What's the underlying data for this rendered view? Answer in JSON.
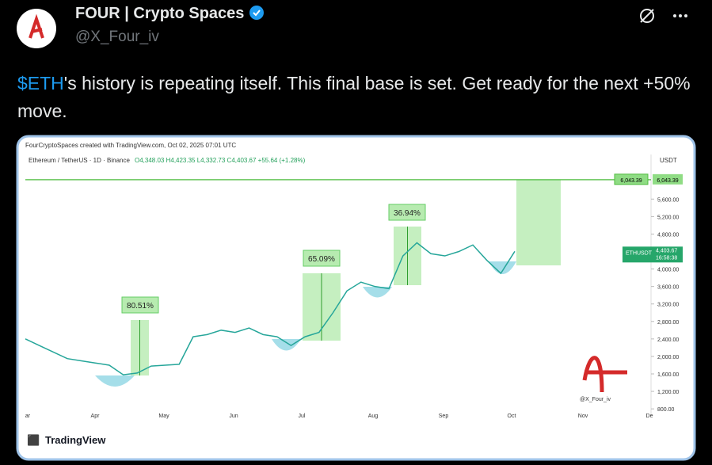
{
  "post": {
    "author": "FOUR | Crypto Spaces",
    "handle": "@X_Four_iv",
    "cashtag": "$ETH",
    "text": "'s history is repeating itself. This final base is set. Get ready for the next +50% move."
  },
  "chart": {
    "header": "FourCryptoSpaces created with TradingView.com, Oct 02, 2025 07:01 UTC",
    "symbol": "Ethereum / TetherUS · 1D · Binance",
    "ohlc": "O4,348.03 H4,423.35 L4,332.73 C4,403.67 +55.64 (+1.28%)",
    "currency": "USDT",
    "ylim": [
      730,
      6530
    ],
    "yticks": [
      {
        "value": 800,
        "label": "800.00"
      },
      {
        "value": 1200,
        "label": "1,200.00"
      },
      {
        "value": 1600,
        "label": "1,600.00"
      },
      {
        "value": 2000,
        "label": "2,000.00"
      },
      {
        "value": 2400,
        "label": "2,400.00"
      },
      {
        "value": 2800,
        "label": "2,800.00"
      },
      {
        "value": 3200,
        "label": "3,200.00"
      },
      {
        "value": 3600,
        "label": "3,600.00"
      },
      {
        "value": 4000,
        "label": "4,000.00"
      },
      {
        "value": 4800,
        "label": "4,800.00"
      },
      {
        "value": 5200,
        "label": "5,200.00"
      },
      {
        "value": 5600,
        "label": "5,600.00"
      }
    ],
    "months": [
      "ar",
      "Apr",
      "May",
      "Jun",
      "Jul",
      "Aug",
      "Sep",
      "Oct",
      "Nov",
      "De"
    ],
    "closes": [
      2400,
      2250,
      2100,
      1950,
      1900,
      1850,
      1800,
      1580,
      1620,
      1780,
      1800,
      1820,
      2450,
      2500,
      2600,
      2550,
      2650,
      2500,
      2450,
      2250,
      2450,
      2550,
      3000,
      3500,
      3700,
      3600,
      3550,
      4300,
      4600,
      4350,
      4300,
      4400,
      4550,
      4200,
      3900,
      4403.67
    ],
    "gains": [
      "80.51%",
      "65.09%",
      "36.94%"
    ],
    "target": {
      "value": 6043.39,
      "label": "6,043.39"
    },
    "last_symbol": "ETHUSDT",
    "last_price": {
      "value": 4403.67,
      "label": "4,403.67"
    },
    "countdown": "16:58:38",
    "watermark": "@X_Four_iv",
    "brand": "TradingView"
  }
}
